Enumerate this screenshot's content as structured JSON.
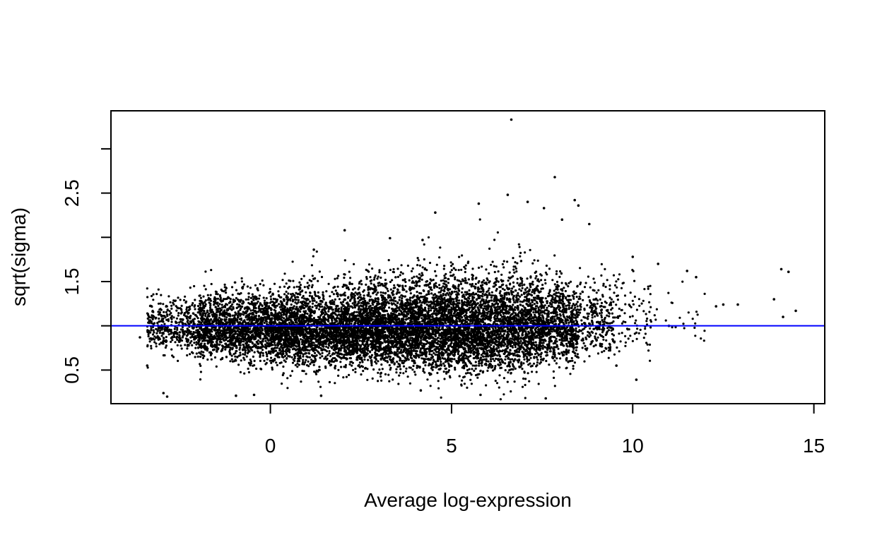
{
  "chart_data": {
    "type": "scatter",
    "title": "",
    "xlabel": "Average log-expression",
    "ylabel": "sqrt(sigma)",
    "xlim": [
      -4.4,
      15.3
    ],
    "ylim": [
      0.12,
      3.43
    ],
    "xticks": [
      0,
      5,
      10,
      15
    ],
    "xtick_labels": [
      "0",
      "5",
      "10",
      "15"
    ],
    "yticks": [
      0.5,
      1.0,
      1.5,
      2.0,
      2.5,
      3.0
    ],
    "ytick_labels": [
      "0.5",
      "",
      "1.5",
      "",
      "2.5",
      ""
    ],
    "grid": false,
    "legend": "none",
    "reference_line": {
      "y": 1.0,
      "color": "#0000ff"
    },
    "point_color": "#000000",
    "points_note_values": [
      [
        6.65,
        3.33
      ],
      [
        7.85,
        2.68
      ],
      [
        6.55,
        2.48
      ],
      [
        7.1,
        2.4
      ],
      [
        8.4,
        2.42
      ],
      [
        8.5,
        2.36
      ],
      [
        7.55,
        2.33
      ],
      [
        5.75,
        2.38
      ],
      [
        4.55,
        2.28
      ],
      [
        8.05,
        2.2
      ],
      [
        8.8,
        2.15
      ],
      [
        2.05,
        2.08
      ],
      [
        3.3,
        1.99
      ],
      [
        4.2,
        1.97
      ],
      [
        1.2,
        1.86
      ],
      [
        10.7,
        1.7
      ],
      [
        10.0,
        1.78
      ],
      [
        14.1,
        1.64
      ],
      [
        14.3,
        1.61
      ],
      [
        11.5,
        1.62
      ],
      [
        11.75,
        1.55
      ],
      [
        13.9,
        1.3
      ],
      [
        14.5,
        1.17
      ],
      [
        14.15,
        1.1
      ],
      [
        12.9,
        1.24
      ],
      [
        12.3,
        1.22
      ],
      [
        12.5,
        1.24
      ],
      [
        10.1,
        0.39
      ],
      [
        -3.6,
        0.87
      ],
      [
        -3.4,
        0.55
      ],
      [
        -2.85,
        0.2
      ],
      [
        -2.95,
        0.24
      ],
      [
        -0.95,
        0.21
      ],
      [
        -0.45,
        0.22
      ],
      [
        1.4,
        0.21
      ],
      [
        5.8,
        0.22
      ],
      [
        7.6,
        0.18
      ],
      [
        4.15,
        0.27
      ],
      [
        9.55,
        0.55
      ],
      [
        11.0,
        1.0
      ]
    ],
    "bulk_density": [
      {
        "x": [
          -3.4,
          -2.0
        ],
        "y_center": 0.98,
        "y_spread": 0.13,
        "count": 420
      },
      {
        "x": [
          -2.0,
          0.0
        ],
        "y_center": 0.96,
        "y_spread": 0.17,
        "count": 1500
      },
      {
        "x": [
          0.0,
          2.0
        ],
        "y_center": 0.94,
        "y_spread": 0.19,
        "count": 1900
      },
      {
        "x": [
          2.0,
          4.0
        ],
        "y_center": 0.96,
        "y_spread": 0.21,
        "count": 2300
      },
      {
        "x": [
          4.0,
          6.0
        ],
        "y_center": 0.97,
        "y_spread": 0.23,
        "count": 2400
      },
      {
        "x": [
          6.0,
          7.5
        ],
        "y_center": 0.98,
        "y_spread": 0.24,
        "count": 1500
      },
      {
        "x": [
          7.5,
          8.5
        ],
        "y_center": 1.0,
        "y_spread": 0.2,
        "count": 700
      },
      {
        "x": [
          8.5,
          9.5
        ],
        "y_center": 1.05,
        "y_spread": 0.18,
        "count": 280
      },
      {
        "x": [
          9.5,
          10.5
        ],
        "y_center": 1.08,
        "y_spread": 0.17,
        "count": 90
      },
      {
        "x": [
          10.5,
          12.0
        ],
        "y_center": 1.12,
        "y_spread": 0.16,
        "count": 25
      }
    ]
  }
}
